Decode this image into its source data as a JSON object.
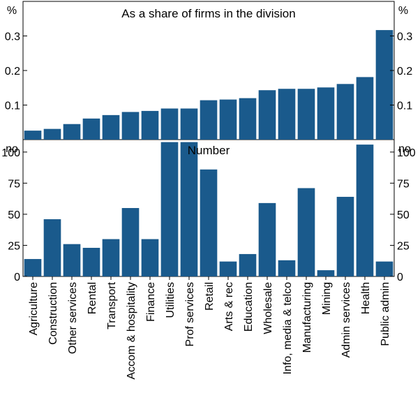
{
  "chart_data": [
    {
      "type": "bar",
      "title": "As a share of firms in the division",
      "left_unit": "%",
      "right_unit": "%",
      "ylim": [
        0,
        0.4
      ],
      "yticks": [
        0.1,
        0.2,
        0.3
      ],
      "ytick_labels": [
        "0.1",
        "0.2",
        "0.3"
      ],
      "color": "#1a5a8c",
      "categories": [
        "Agriculture",
        "Construction",
        "Other services",
        "Rental",
        "Transport",
        "Accom & hospitality",
        "Finance",
        "Utilities",
        "Prof services",
        "Retail",
        "Arts & rec",
        "Education",
        "Wholesale",
        "Info, media & telco",
        "Manufacturing",
        "Mining",
        "Admin services",
        "Health",
        "Public admin"
      ],
      "values": [
        0.026,
        0.031,
        0.045,
        0.061,
        0.071,
        0.08,
        0.083,
        0.09,
        0.09,
        0.114,
        0.116,
        0.12,
        0.143,
        0.147,
        0.147,
        0.151,
        0.161,
        0.181,
        0.317
      ]
    },
    {
      "type": "bar",
      "title": "Number",
      "left_unit": "no",
      "right_unit": "no",
      "ylim": [
        0,
        110
      ],
      "yticks": [
        0,
        25,
        50,
        75,
        100
      ],
      "ytick_labels": [
        "0",
        "25",
        "50",
        "75",
        "100"
      ],
      "color": "#1a5a8c",
      "categories": [
        "Agriculture",
        "Construction",
        "Other services",
        "Rental",
        "Transport",
        "Accom & hospitality",
        "Finance",
        "Utilities",
        "Prof services",
        "Retail",
        "Arts & rec",
        "Education",
        "Wholesale",
        "Info, media & telco",
        "Manufacturing",
        "Mining",
        "Admin services",
        "Health",
        "Public admin"
      ],
      "values": [
        14,
        46,
        26,
        23,
        30,
        55,
        30,
        108,
        108,
        86,
        12,
        18,
        59,
        13,
        71,
        5,
        64,
        106,
        12
      ]
    }
  ]
}
